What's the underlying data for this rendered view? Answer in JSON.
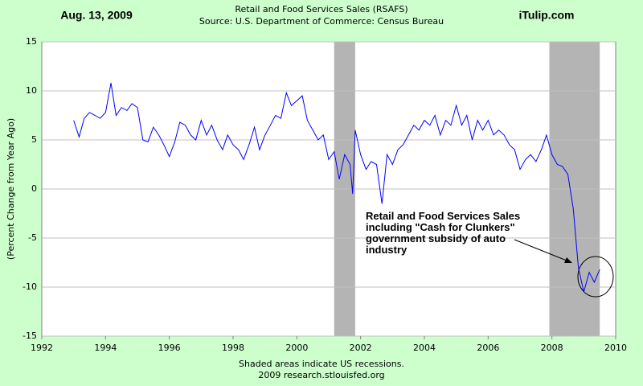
{
  "chart_data": {
    "type": "line",
    "title": "Retail and Food Services Sales (RSAFS)",
    "subtitle": "Source: U.S. Department of Commerce: Census Bureau",
    "date_label": "Aug. 13, 2009",
    "brand": "iTulip.com",
    "y_label": "(Percent Change from Year Ago)",
    "footer": [
      "Shaded areas indicate US recessions.",
      "2009 research.stlouisfed.org"
    ],
    "annotation": "Retail and Food Services Sales including \"Cash for Clunkers\" government subsidy of auto industry",
    "xlim": [
      1992,
      2010
    ],
    "xticks": [
      1992,
      1994,
      1996,
      1998,
      2000,
      2002,
      2004,
      2006,
      2008,
      2010
    ],
    "ylim": [
      -15,
      15
    ],
    "yticks": [
      -15,
      -10,
      -5,
      0,
      5,
      10,
      15
    ],
    "grid": true,
    "recessions": [
      [
        2001.17,
        2001.83
      ],
      [
        2007.92,
        2009.5
      ]
    ],
    "recession_color": "#b4b4b4",
    "x": [
      1993.0,
      1993.17,
      1993.33,
      1993.5,
      1993.67,
      1993.83,
      1994.0,
      1994.17,
      1994.33,
      1994.5,
      1994.67,
      1994.83,
      1995.0,
      1995.17,
      1995.33,
      1995.5,
      1995.67,
      1995.83,
      1996.0,
      1996.17,
      1996.33,
      1996.5,
      1996.67,
      1996.83,
      1997.0,
      1997.17,
      1997.33,
      1997.5,
      1997.67,
      1997.83,
      1998.0,
      1998.17,
      1998.33,
      1998.5,
      1998.67,
      1998.83,
      1999.0,
      1999.17,
      1999.33,
      1999.5,
      1999.67,
      1999.83,
      2000.0,
      2000.17,
      2000.33,
      2000.5,
      2000.67,
      2000.83,
      2001.0,
      2001.17,
      2001.33,
      2001.5,
      2001.67,
      2001.75,
      2001.83,
      2002.0,
      2002.17,
      2002.33,
      2002.5,
      2002.67,
      2002.83,
      2003.0,
      2003.17,
      2003.33,
      2003.5,
      2003.67,
      2003.83,
      2004.0,
      2004.17,
      2004.33,
      2004.5,
      2004.67,
      2004.83,
      2005.0,
      2005.17,
      2005.33,
      2005.5,
      2005.67,
      2005.83,
      2006.0,
      2006.17,
      2006.33,
      2006.5,
      2006.67,
      2006.83,
      2007.0,
      2007.17,
      2007.33,
      2007.5,
      2007.67,
      2007.83,
      2008.0,
      2008.17,
      2008.33,
      2008.5,
      2008.67,
      2008.83,
      2009.0,
      2009.17,
      2009.33,
      2009.5
    ],
    "series": [
      {
        "name": "RSAFS",
        "color": "#0000ff",
        "values": [
          7.0,
          5.3,
          7.2,
          7.8,
          7.5,
          7.2,
          7.8,
          10.8,
          7.5,
          8.3,
          8.0,
          8.7,
          8.3,
          5.0,
          4.8,
          6.3,
          5.5,
          4.5,
          3.3,
          4.8,
          6.8,
          6.5,
          5.5,
          5.0,
          7.0,
          5.5,
          6.5,
          5.0,
          4.0,
          5.5,
          4.5,
          4.0,
          3.0,
          4.5,
          6.3,
          4.0,
          5.5,
          6.5,
          7.5,
          7.2,
          9.8,
          8.5,
          9.0,
          9.5,
          7.0,
          6.0,
          5.0,
          5.5,
          3.0,
          3.8,
          1.0,
          3.5,
          2.5,
          -0.5,
          6.0,
          3.5,
          2.0,
          2.8,
          2.5,
          -1.5,
          3.5,
          2.5,
          4.0,
          4.5,
          5.5,
          6.5,
          6.0,
          7.0,
          6.5,
          7.5,
          5.5,
          7.0,
          6.5,
          8.5,
          6.5,
          7.5,
          5.0,
          7.0,
          6.0,
          7.0,
          5.5,
          6.0,
          5.5,
          4.5,
          4.0,
          2.0,
          3.0,
          3.5,
          2.8,
          4.0,
          5.5,
          3.5,
          2.5,
          2.3,
          1.5,
          -2.0,
          -8.0,
          -10.5,
          -8.5,
          -9.5,
          -8.2
        ]
      }
    ]
  }
}
